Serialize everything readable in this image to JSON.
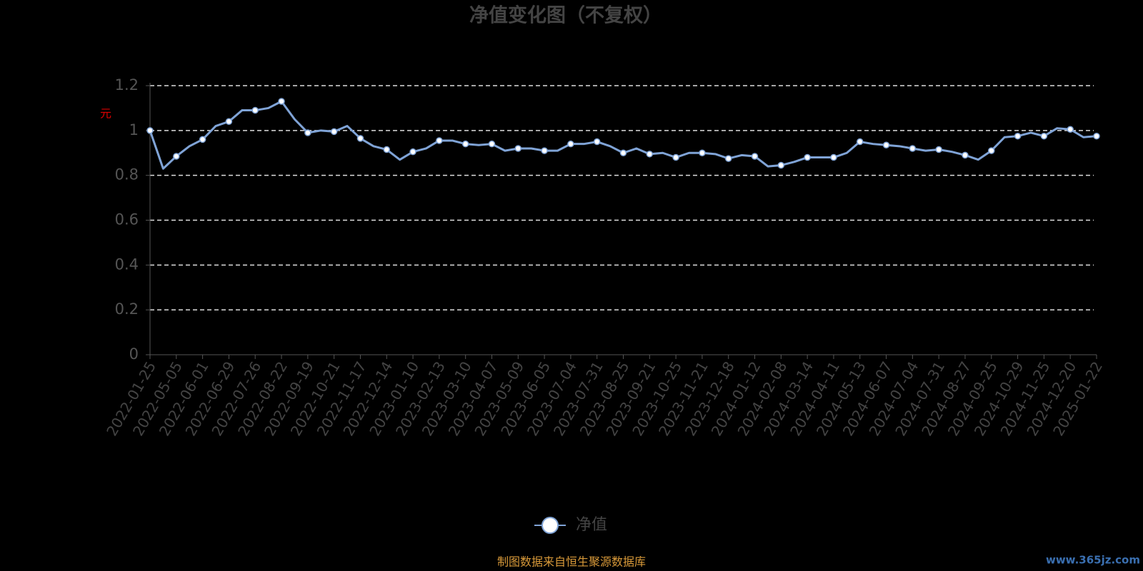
{
  "chart_data": {
    "type": "line",
    "title": "净值变化图（不复权）",
    "y_label": "元",
    "categories": [
      "2022-01-25",
      null,
      "2022-05-05",
      null,
      "2022-06-01",
      null,
      "2022-06-29",
      null,
      "2022-07-26",
      null,
      "2022-08-22",
      null,
      "2022-09-19",
      null,
      "2022-10-21",
      null,
      "2022-11-17",
      null,
      "2022-12-14",
      null,
      "2023-01-10",
      null,
      "2023-02-13",
      null,
      "2023-03-10",
      null,
      "2023-04-07",
      null,
      "2023-05-09",
      null,
      "2023-06-05",
      null,
      "2023-07-04",
      null,
      "2023-07-31",
      null,
      "2023-08-25",
      null,
      "2023-09-21",
      null,
      "2023-10-25",
      null,
      "2023-11-21",
      null,
      "2023-12-18",
      null,
      "2024-01-12",
      null,
      "2024-02-08",
      null,
      "2024-03-14",
      null,
      "2024-04-11",
      null,
      "2024-05-13",
      null,
      "2024-06-07",
      null,
      "2024-07-04",
      null,
      "2024-07-31",
      null,
      "2024-08-27",
      null,
      "2024-09-25",
      null,
      "2024-10-29",
      null,
      "2024-11-25",
      null,
      "2024-12-20",
      null,
      "2025-01-22"
    ],
    "series": [
      {
        "name": "净值",
        "color": "#7fa3d6",
        "values": [
          1.0,
          0.83,
          0.885,
          0.93,
          0.96,
          1.02,
          1.04,
          1.09,
          1.09,
          1.1,
          1.13,
          1.05,
          0.99,
          1.0,
          0.995,
          1.02,
          0.965,
          0.93,
          0.915,
          0.87,
          0.905,
          0.92,
          0.955,
          0.955,
          0.94,
          0.935,
          0.94,
          0.91,
          0.92,
          0.92,
          0.91,
          0.91,
          0.94,
          0.94,
          0.95,
          0.93,
          0.9,
          0.92,
          0.895,
          0.9,
          0.88,
          0.9,
          0.9,
          0.895,
          0.875,
          0.89,
          0.885,
          0.84,
          0.845,
          0.86,
          0.88,
          0.88,
          0.88,
          0.9,
          0.95,
          0.94,
          0.935,
          0.93,
          0.92,
          0.91,
          0.915,
          0.905,
          0.89,
          0.87,
          0.91,
          0.97,
          0.975,
          0.99,
          0.975,
          1.01,
          1.005,
          0.97,
          0.975
        ]
      }
    ],
    "ylim": [
      0,
      1.2
    ],
    "yticks": [
      0,
      0.2,
      0.4,
      0.6,
      0.8,
      1,
      1.2
    ],
    "grid": true,
    "source": "制图数据来自恒生聚源数据库",
    "watermark": "www.365jz.com"
  }
}
